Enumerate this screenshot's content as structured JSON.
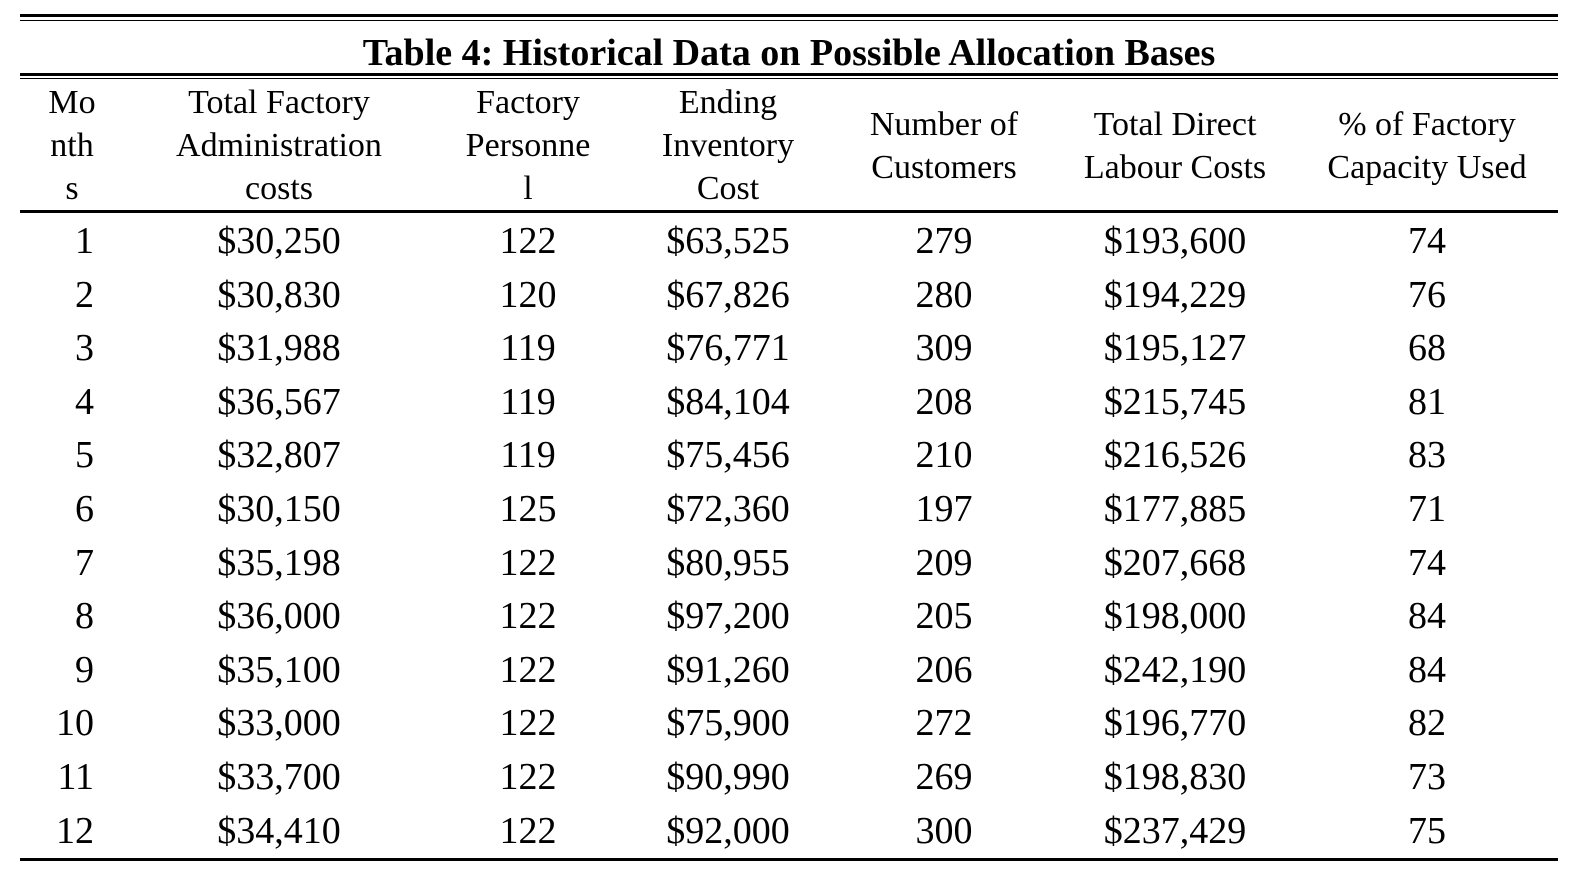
{
  "title": "Table 4: Historical Data on Possible Allocation Bases",
  "columns": [
    "Mo\nnth\ns",
    "Total Factory\nAdministration\ncosts",
    "Factory\nPersonne\nl",
    "Ending\nInventory\nCost",
    "Number of\nCustomers",
    "Total Direct\nLabour Costs",
    "% of Factory\nCapacity Used"
  ],
  "rows": [
    [
      "1",
      "$30,250",
      "122",
      "$63,525",
      "279",
      "$193,600",
      "74"
    ],
    [
      "2",
      "$30,830",
      "120",
      "$67,826",
      "280",
      "$194,229",
      "76"
    ],
    [
      "3",
      "$31,988",
      "119",
      "$76,771",
      "309",
      "$195,127",
      "68"
    ],
    [
      "4",
      "$36,567",
      "119",
      "$84,104",
      "208",
      "$215,745",
      "81"
    ],
    [
      "5",
      "$32,807",
      "119",
      "$75,456",
      "210",
      "$216,526",
      "83"
    ],
    [
      "6",
      "$30,150",
      "125",
      "$72,360",
      "197",
      "$177,885",
      "71"
    ],
    [
      "7",
      "$35,198",
      "122",
      "$80,955",
      "209",
      "$207,668",
      "74"
    ],
    [
      "8",
      "$36,000",
      "122",
      "$97,200",
      "205",
      "$198,000",
      "84"
    ],
    [
      "9",
      "$35,100",
      "122",
      "$91,260",
      "206",
      "$242,190",
      "84"
    ],
    [
      "10",
      "$33,000",
      "122",
      "$75,900",
      "272",
      "$196,770",
      "82"
    ],
    [
      "11",
      "$33,700",
      "122",
      "$90,990",
      "269",
      "$198,830",
      "73"
    ],
    [
      "12",
      "$34,410",
      "122",
      "$92,000",
      "300",
      "$237,429",
      "75"
    ]
  ]
}
